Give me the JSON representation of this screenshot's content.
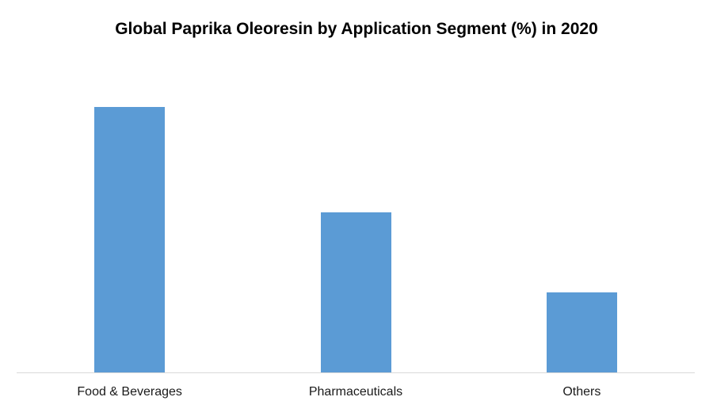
{
  "title": "Global Paprika Oleoresin by Application Segment (%) in 2020",
  "colors": {
    "background": "#ffffff",
    "bar": "#5b9bd5",
    "axis_line": "#d9d9d9",
    "title_text": "#000000",
    "label_text": "#1a1a1a"
  },
  "chart_data": {
    "type": "bar",
    "title": "Global Paprika Oleoresin by Application Segment (%) in 2020",
    "categories": [
      "Food & Beverages",
      "Pharmaceuticals",
      "Others"
    ],
    "values": [
      53,
      32,
      16
    ],
    "xlabel": "",
    "ylabel": "",
    "ylim": [
      0,
      60
    ],
    "grid": false,
    "legend": false,
    "y_axis_labels_visible": false,
    "data_labels_visible": false,
    "bar_color": "#5b9bd5"
  }
}
